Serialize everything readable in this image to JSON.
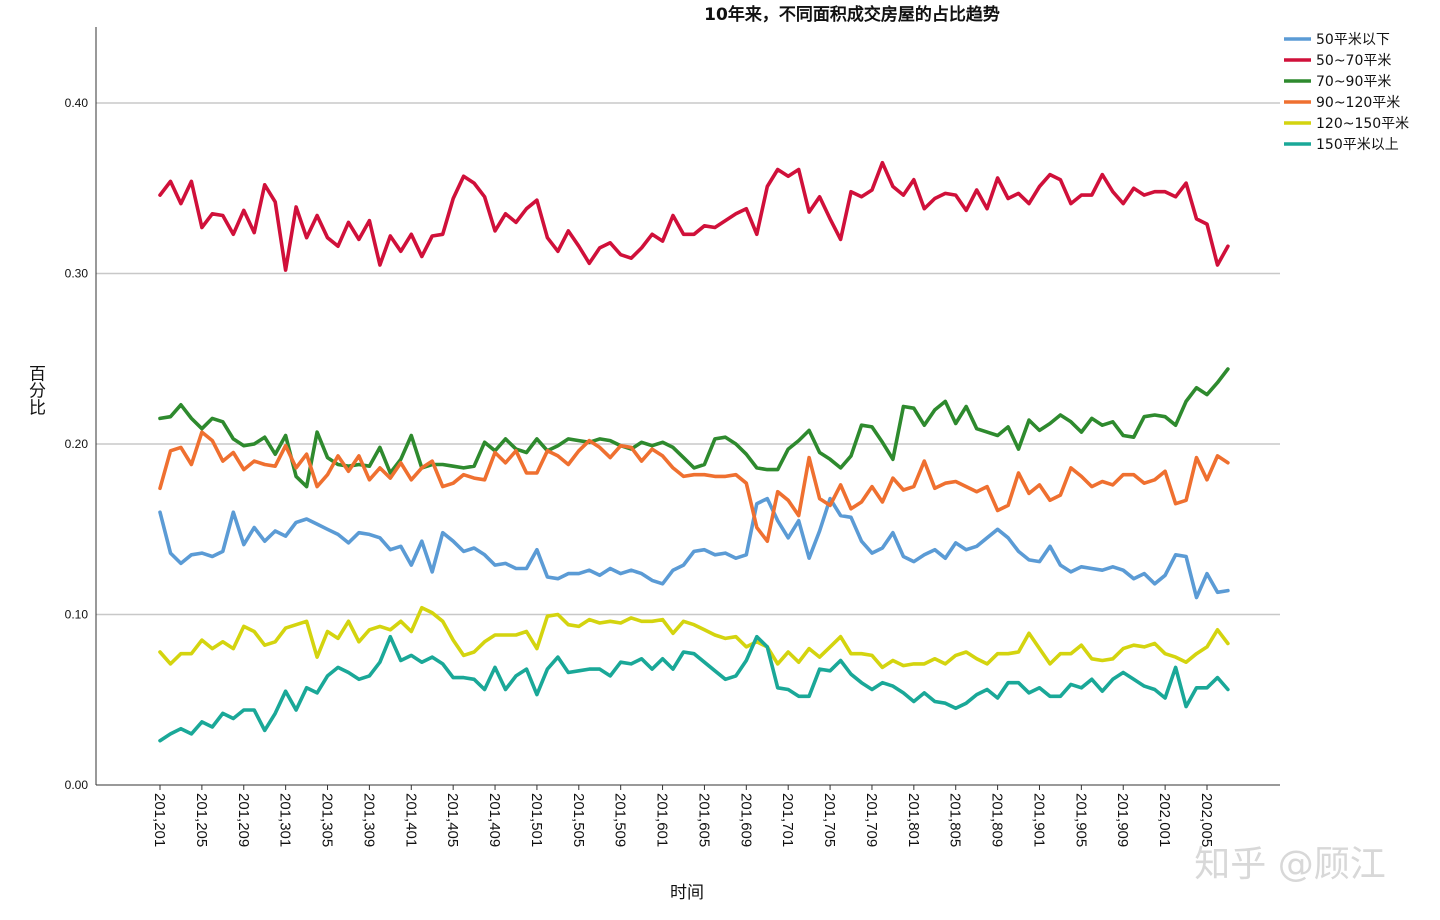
{
  "chart_data": {
    "type": "line",
    "title": "10年来，不同面积成交房屋的占比趋势",
    "xlabel": "时间",
    "ylabel": "百分比",
    "ylim": [
      0,
      0.44
    ],
    "y_ticks": [
      "0.00",
      "0.10",
      "0.20",
      "0.30",
      "0.40"
    ],
    "y_tick_values": [
      0,
      0.1,
      0.2,
      0.3,
      0.4
    ],
    "x_tick_labels": [
      "201,201",
      "201,205",
      "201,209",
      "201,301",
      "201,305",
      "201,309",
      "201,401",
      "201,405",
      "201,409",
      "201,501",
      "201,505",
      "201,509",
      "201,601",
      "201,605",
      "201,609",
      "201,701",
      "201,705",
      "201,709",
      "201,801",
      "201,805",
      "201,809",
      "201,901",
      "201,905",
      "201,909",
      "202,001",
      "202,005"
    ],
    "grid": "horizontal",
    "legend_position": "top-right",
    "series": [
      {
        "name": "50平米以下",
        "color": "#5b9bd5",
        "values": [
          0.16,
          0.136,
          0.13,
          0.135,
          0.136,
          0.134,
          0.137,
          0.16,
          0.141,
          0.151,
          0.143,
          0.149,
          0.146,
          0.154,
          0.156,
          0.153,
          0.15,
          0.147,
          0.142,
          0.148,
          0.147,
          0.145,
          0.138,
          0.14,
          0.129,
          0.143,
          0.125,
          0.148,
          0.143,
          0.137,
          0.139,
          0.135,
          0.129,
          0.13,
          0.127,
          0.127,
          0.138,
          0.122,
          0.121,
          0.124,
          0.124,
          0.126,
          0.123,
          0.127,
          0.124,
          0.126,
          0.124,
          0.12,
          0.118,
          0.126,
          0.129,
          0.137,
          0.138,
          0.135,
          0.136,
          0.133,
          0.135,
          0.165,
          0.168,
          0.155,
          0.145,
          0.155,
          0.133,
          0.149,
          0.168,
          0.158,
          0.157,
          0.143,
          0.136,
          0.139,
          0.148,
          0.134,
          0.131,
          0.135,
          0.138,
          0.133,
          0.142,
          0.138,
          0.14,
          0.145,
          0.15,
          0.145,
          0.137,
          0.132,
          0.131,
          0.14,
          0.129,
          0.125,
          0.128,
          0.127,
          0.126,
          0.128,
          0.126,
          0.121,
          0.124,
          0.118,
          0.123,
          0.135,
          0.134,
          0.11,
          0.124,
          0.113,
          0.114
        ]
      },
      {
        "name": "50~70平米",
        "color": "#d0103a",
        "values": [
          0.346,
          0.354,
          0.341,
          0.354,
          0.327,
          0.335,
          0.334,
          0.323,
          0.337,
          0.324,
          0.352,
          0.342,
          0.302,
          0.339,
          0.321,
          0.334,
          0.321,
          0.316,
          0.33,
          0.32,
          0.331,
          0.305,
          0.322,
          0.313,
          0.323,
          0.31,
          0.322,
          0.323,
          0.344,
          0.357,
          0.353,
          0.345,
          0.325,
          0.335,
          0.33,
          0.338,
          0.343,
          0.321,
          0.313,
          0.325,
          0.316,
          0.306,
          0.315,
          0.318,
          0.311,
          0.309,
          0.315,
          0.323,
          0.319,
          0.334,
          0.323,
          0.323,
          0.328,
          0.327,
          0.331,
          0.335,
          0.338,
          0.323,
          0.351,
          0.361,
          0.357,
          0.361,
          0.336,
          0.345,
          0.332,
          0.32,
          0.348,
          0.345,
          0.349,
          0.365,
          0.351,
          0.346,
          0.355,
          0.338,
          0.344,
          0.347,
          0.346,
          0.337,
          0.349,
          0.338,
          0.356,
          0.344,
          0.347,
          0.341,
          0.351,
          0.358,
          0.355,
          0.341,
          0.346,
          0.346,
          0.358,
          0.348,
          0.341,
          0.35,
          0.346,
          0.348,
          0.348,
          0.345,
          0.353,
          0.332,
          0.329,
          0.305,
          0.316
        ]
      },
      {
        "name": "70~90平米",
        "color": "#2e8a2e",
        "values": [
          0.215,
          0.216,
          0.223,
          0.215,
          0.209,
          0.215,
          0.213,
          0.203,
          0.199,
          0.2,
          0.204,
          0.194,
          0.205,
          0.181,
          0.175,
          0.207,
          0.192,
          0.188,
          0.187,
          0.188,
          0.187,
          0.198,
          0.183,
          0.191,
          0.205,
          0.186,
          0.188,
          0.188,
          0.187,
          0.186,
          0.187,
          0.201,
          0.196,
          0.203,
          0.197,
          0.195,
          0.203,
          0.196,
          0.199,
          0.203,
          0.202,
          0.201,
          0.203,
          0.202,
          0.199,
          0.197,
          0.201,
          0.199,
          0.201,
          0.198,
          0.192,
          0.186,
          0.188,
          0.203,
          0.204,
          0.2,
          0.194,
          0.186,
          0.185,
          0.185,
          0.197,
          0.202,
          0.208,
          0.195,
          0.191,
          0.186,
          0.193,
          0.211,
          0.21,
          0.201,
          0.191,
          0.222,
          0.221,
          0.211,
          0.22,
          0.225,
          0.212,
          0.222,
          0.209,
          0.207,
          0.205,
          0.21,
          0.197,
          0.214,
          0.208,
          0.212,
          0.217,
          0.213,
          0.207,
          0.215,
          0.211,
          0.213,
          0.205,
          0.204,
          0.216,
          0.217,
          0.216,
          0.211,
          0.225,
          0.233,
          0.229,
          0.236,
          0.244
        ]
      },
      {
        "name": "90~120平米",
        "color": "#ef7030",
        "values": [
          0.174,
          0.196,
          0.198,
          0.188,
          0.207,
          0.202,
          0.19,
          0.195,
          0.185,
          0.19,
          0.188,
          0.187,
          0.199,
          0.186,
          0.194,
          0.175,
          0.182,
          0.193,
          0.184,
          0.193,
          0.179,
          0.186,
          0.18,
          0.189,
          0.179,
          0.186,
          0.19,
          0.175,
          0.177,
          0.182,
          0.18,
          0.179,
          0.195,
          0.189,
          0.196,
          0.183,
          0.183,
          0.196,
          0.193,
          0.188,
          0.196,
          0.202,
          0.198,
          0.192,
          0.199,
          0.198,
          0.19,
          0.197,
          0.193,
          0.186,
          0.181,
          0.182,
          0.182,
          0.181,
          0.181,
          0.182,
          0.177,
          0.151,
          0.143,
          0.172,
          0.167,
          0.158,
          0.192,
          0.168,
          0.164,
          0.176,
          0.162,
          0.166,
          0.175,
          0.166,
          0.18,
          0.173,
          0.175,
          0.19,
          0.174,
          0.177,
          0.178,
          0.175,
          0.172,
          0.175,
          0.161,
          0.164,
          0.183,
          0.171,
          0.176,
          0.167,
          0.17,
          0.186,
          0.181,
          0.175,
          0.178,
          0.176,
          0.182,
          0.182,
          0.177,
          0.179,
          0.184,
          0.165,
          0.167,
          0.192,
          0.179,
          0.193,
          0.189
        ]
      },
      {
        "name": "120~150平米",
        "color": "#d4d40f",
        "values": [
          0.078,
          0.071,
          0.077,
          0.077,
          0.085,
          0.08,
          0.084,
          0.08,
          0.093,
          0.09,
          0.082,
          0.084,
          0.092,
          0.094,
          0.096,
          0.075,
          0.09,
          0.086,
          0.096,
          0.084,
          0.091,
          0.093,
          0.091,
          0.096,
          0.09,
          0.104,
          0.101,
          0.096,
          0.085,
          0.076,
          0.078,
          0.084,
          0.088,
          0.088,
          0.088,
          0.09,
          0.08,
          0.099,
          0.1,
          0.094,
          0.093,
          0.097,
          0.095,
          0.096,
          0.095,
          0.098,
          0.096,
          0.096,
          0.097,
          0.089,
          0.096,
          0.094,
          0.091,
          0.088,
          0.086,
          0.087,
          0.081,
          0.084,
          0.081,
          0.071,
          0.078,
          0.072,
          0.08,
          0.075,
          0.081,
          0.087,
          0.077,
          0.077,
          0.076,
          0.069,
          0.073,
          0.07,
          0.071,
          0.071,
          0.074,
          0.071,
          0.076,
          0.078,
          0.074,
          0.071,
          0.077,
          0.077,
          0.078,
          0.089,
          0.08,
          0.071,
          0.077,
          0.077,
          0.082,
          0.074,
          0.073,
          0.074,
          0.08,
          0.082,
          0.081,
          0.083,
          0.077,
          0.075,
          0.072,
          0.077,
          0.081,
          0.091,
          0.083
        ]
      },
      {
        "name": "150平米以上",
        "color": "#1aa898",
        "values": [
          0.026,
          0.03,
          0.033,
          0.03,
          0.037,
          0.034,
          0.042,
          0.039,
          0.044,
          0.044,
          0.032,
          0.042,
          0.055,
          0.044,
          0.057,
          0.054,
          0.064,
          0.069,
          0.066,
          0.062,
          0.064,
          0.072,
          0.087,
          0.073,
          0.076,
          0.072,
          0.075,
          0.071,
          0.063,
          0.063,
          0.062,
          0.056,
          0.069,
          0.056,
          0.064,
          0.068,
          0.053,
          0.068,
          0.075,
          0.066,
          0.067,
          0.068,
          0.068,
          0.064,
          0.072,
          0.071,
          0.074,
          0.068,
          0.074,
          0.068,
          0.078,
          0.077,
          0.072,
          0.067,
          0.062,
          0.064,
          0.073,
          0.087,
          0.081,
          0.057,
          0.056,
          0.052,
          0.052,
          0.068,
          0.067,
          0.073,
          0.065,
          0.06,
          0.056,
          0.06,
          0.058,
          0.054,
          0.049,
          0.054,
          0.049,
          0.048,
          0.045,
          0.048,
          0.053,
          0.056,
          0.051,
          0.06,
          0.06,
          0.054,
          0.057,
          0.052,
          0.052,
          0.059,
          0.057,
          0.062,
          0.055,
          0.062,
          0.066,
          0.062,
          0.058,
          0.056,
          0.051,
          0.069,
          0.046,
          0.057,
          0.057,
          0.063,
          0.056
        ]
      }
    ]
  },
  "watermark": "知乎 @顾江"
}
